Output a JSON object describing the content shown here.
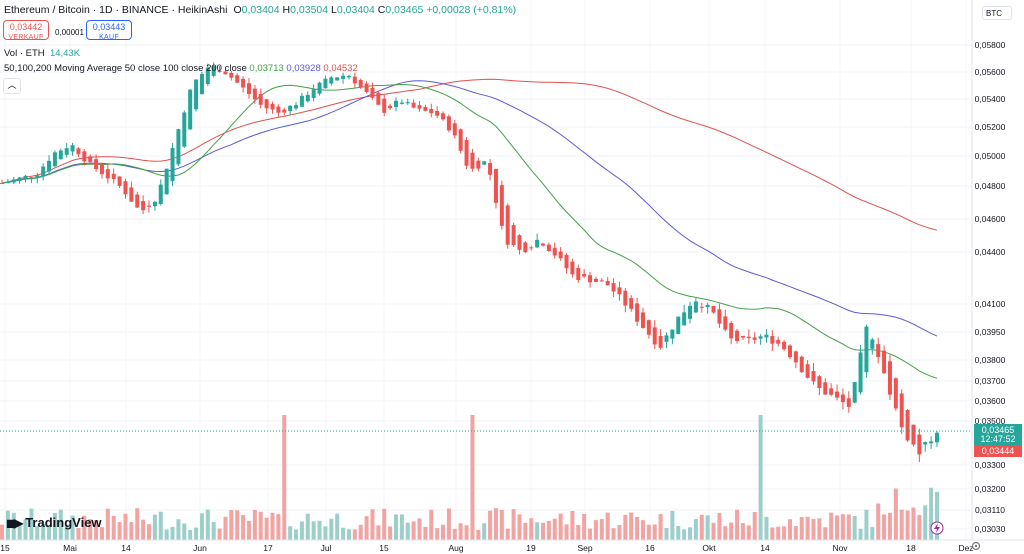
{
  "header": {
    "symbol": "Ethereum / Bitcoin · 1D · BINANCE · HeikinAshi",
    "o_label": "O",
    "o": "0,03404",
    "h_label": "H",
    "h": "0,03504",
    "l_label": "L",
    "l": "0,03404",
    "c_label": "C",
    "c": "0,03465",
    "change": "+0,00028 (+0,81%)"
  },
  "trade": {
    "sell_price": "0,03442",
    "sell_label": "VERKAUF",
    "spread": "0,00001",
    "buy_price": "0,03443",
    "buy_label": "KAUF"
  },
  "volume_legend": {
    "label": "Vol · ETH",
    "value": "14,43K"
  },
  "ma_legend": {
    "label": "50,100,200 Moving Average 50 close 100 close 200 close",
    "v50": "0,03713",
    "v100": "0,03928",
    "v200": "0,04532"
  },
  "currency_button": "BTC",
  "logo_text": "TradingView",
  "colors": {
    "up": "#26a69a",
    "down": "#ef5350",
    "ma50": "#43a047",
    "ma100": "#5b5bd6",
    "ma200": "#e0524f",
    "vol_up": "#9ccfca",
    "vol_down": "#f1a4a2"
  },
  "chart_data": {
    "type": "candlestick",
    "title": "Ethereum / Bitcoin · 1D · BINANCE · HeikinAshi",
    "y_ticks": [
      "0,05800",
      "0,05600",
      "0,05400",
      "0,05200",
      "0,05000",
      "0,04800",
      "0,04600",
      "0,04400",
      "0,04100",
      "0,03950",
      "0,03800",
      "0,03700",
      "0,03600",
      "0,03500",
      "0,03300",
      "0,03200",
      "0,03110",
      "0,03030"
    ],
    "x_ticks": [
      "15",
      "Mai",
      "14",
      "Jun",
      "17",
      "Jul",
      "15",
      "Aug",
      "19",
      "Sep",
      "16",
      "Okt",
      "14",
      "Nov",
      "18",
      "Dez"
    ],
    "last_price": "0,03465",
    "countdown": "12:47:52",
    "bid_price": "0,03444",
    "ma_endpoints": {
      "ma50": 0.03713,
      "ma100": 0.03928,
      "ma200": 0.04532
    },
    "approx_close_path": [
      0.0482,
      0.0485,
      0.0488,
      0.0502,
      0.0508,
      0.0495,
      0.0487,
      0.0478,
      0.0464,
      0.0474,
      0.0511,
      0.0551,
      0.0565,
      0.0559,
      0.0547,
      0.0535,
      0.053,
      0.0537,
      0.0548,
      0.0556,
      0.0558,
      0.0545,
      0.0531,
      0.0539,
      0.0532,
      0.053,
      0.0517,
      0.049,
      0.0497,
      0.0448,
      0.044,
      0.0448,
      0.0438,
      0.0426,
      0.0424,
      0.0421,
      0.041,
      0.0398,
      0.0387,
      0.0402,
      0.0413,
      0.0406,
      0.0391,
      0.039,
      0.0393,
      0.0388,
      0.0378,
      0.0367,
      0.0362,
      0.0357,
      0.04,
      0.0372,
      0.0346,
      0.0335,
      0.0346
    ]
  }
}
